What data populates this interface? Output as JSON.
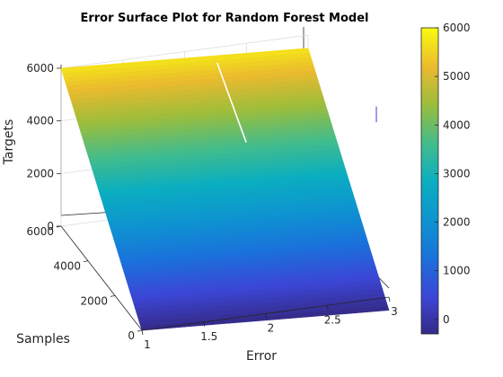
{
  "chart_data": {
    "type": "surface",
    "title": "Error Surface Plot for Random Forest Model",
    "xlabel": "Error",
    "ylabel": "Samples",
    "zlabel": "Targets",
    "xlim": [
      1,
      3
    ],
    "ylim": [
      0,
      6000
    ],
    "zlim": [
      0,
      6000
    ],
    "x_ticks": [
      {
        "value": 1,
        "label": "1"
      },
      {
        "value": 1.5,
        "label": "1.5"
      },
      {
        "value": 2,
        "label": "2"
      },
      {
        "value": 2.5,
        "label": "2.5"
      },
      {
        "value": 3,
        "label": "3"
      }
    ],
    "y_ticks": [
      {
        "value": 0,
        "label": "0"
      },
      {
        "value": 2000,
        "label": "2000"
      },
      {
        "value": 4000,
        "label": "4000"
      },
      {
        "value": 6000,
        "label": "6000"
      }
    ],
    "z_ticks": [
      {
        "value": 0,
        "label": "0"
      },
      {
        "value": 2000,
        "label": "2000"
      },
      {
        "value": 4000,
        "label": "4000"
      },
      {
        "value": 6000,
        "label": "6000"
      }
    ],
    "surface": {
      "samples": [
        0,
        6000
      ],
      "error_fold": 2.25,
      "targets_low_edge": [
        {
          "samples": 0,
          "targets": -500
        },
        {
          "samples": 6000,
          "targets": 5500
        }
      ],
      "targets_high_edge": [
        {
          "samples": 0,
          "targets": 0
        },
        {
          "samples": 6000,
          "targets": 6000
        }
      ]
    },
    "colorbar": {
      "colormap": "parula",
      "range": [
        -300,
        6000
      ],
      "ticks": [
        {
          "value": 0,
          "label": "0"
        },
        {
          "value": 1000,
          "label": "1000"
        },
        {
          "value": 2000,
          "label": "2000"
        },
        {
          "value": 3000,
          "label": "3000"
        },
        {
          "value": 4000,
          "label": "4000"
        },
        {
          "value": 5000,
          "label": "5000"
        },
        {
          "value": 6000,
          "label": "6000"
        }
      ]
    },
    "grid": true
  }
}
